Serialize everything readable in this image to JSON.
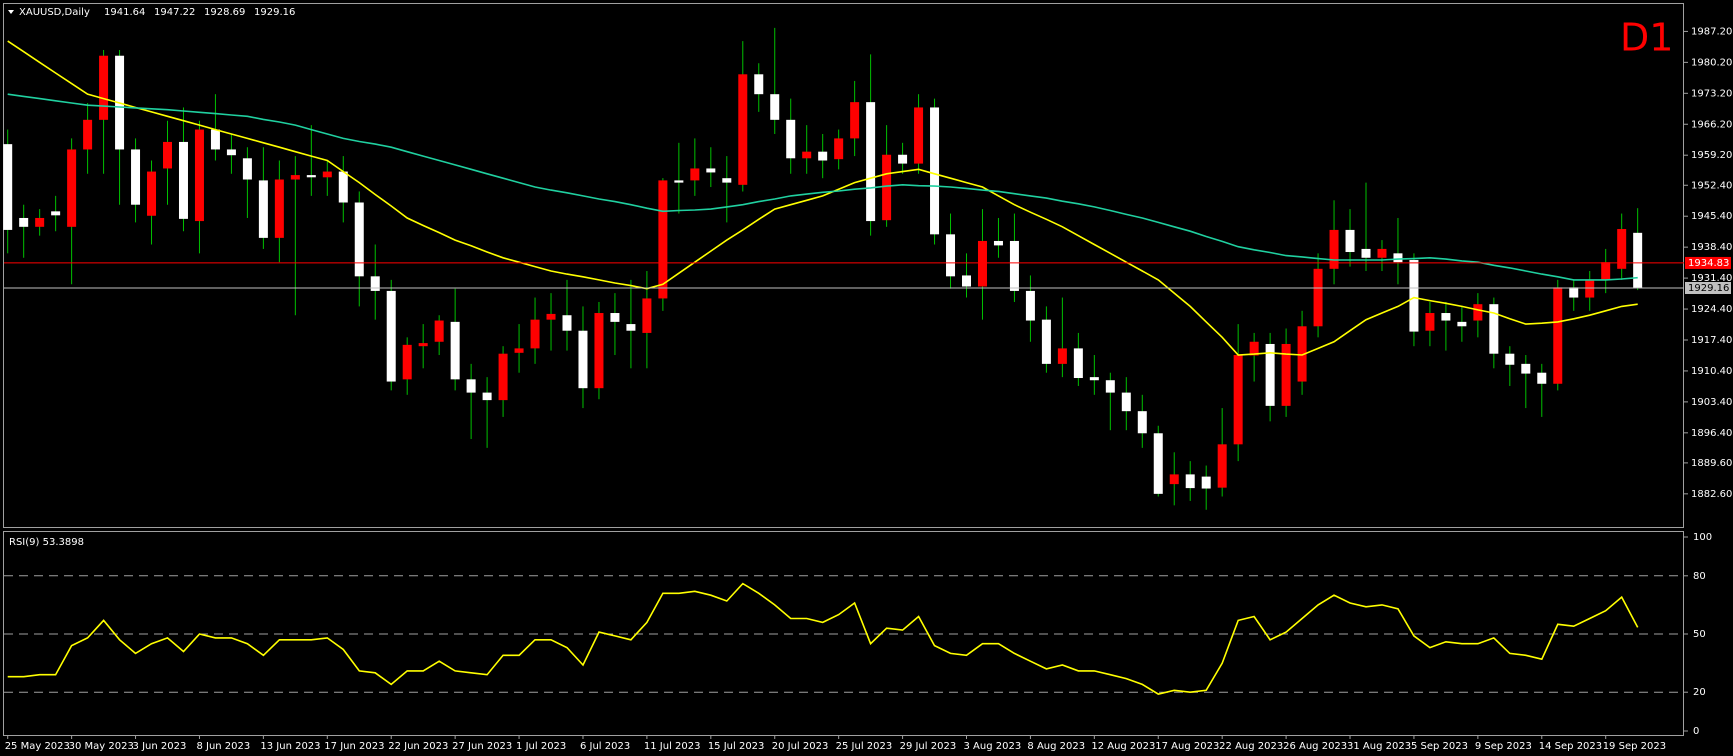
{
  "chart_data": [
    {
      "type": "candlestick",
      "title": "XAUUSD,Daily",
      "timeframe": "D1",
      "categories": [
        "25 May 2023",
        null,
        null,
        null,
        "30 May 2023",
        null,
        null,
        null,
        "3 Jun 2023",
        null,
        null,
        null,
        "8 Jun 2023",
        null,
        null,
        null,
        "13 Jun 2023",
        null,
        null,
        null,
        "17 Jun 2023",
        null,
        null,
        null,
        "22 Jun 2023",
        null,
        null,
        null,
        "27 Jun 2023",
        null,
        null,
        null,
        "1 Jul 2023",
        null,
        null,
        null,
        "6 Jul 2023",
        null,
        null,
        null,
        "11 Jul 2023",
        null,
        null,
        null,
        "15 Jul 2023",
        null,
        null,
        null,
        "20 Jul 2023",
        null,
        null,
        null,
        "25 Jul 2023",
        null,
        null,
        null,
        "29 Jul 2023",
        null,
        null,
        null,
        "3 Aug 2023",
        null,
        null,
        null,
        "8 Aug 2023",
        null,
        null,
        null,
        "12 Aug 2023",
        null,
        null,
        null,
        "17 Aug 2023",
        null,
        null,
        null,
        "22 Aug 2023",
        null,
        null,
        null,
        "26 Aug 2023",
        null,
        null,
        null,
        "31 Aug 2023",
        null,
        null,
        null,
        "5 Sep 2023",
        null,
        null,
        null,
        "9 Sep 2023",
        null,
        null,
        null,
        "14 Sep 2023",
        null,
        null,
        null,
        "19 Sep 2023",
        null,
        null
      ],
      "open": [
        1961.7,
        1945,
        1943,
        1946.5,
        1943,
        1960.5,
        1967.2,
        1981.7,
        1960.5,
        1945.5,
        1956.2,
        1962.2,
        1944.3,
        1965,
        1960.5,
        1958.5,
        1953.5,
        1940.5,
        1953.7,
        1954.7,
        1954.2,
        1955.5,
        1948.5,
        1931.8,
        1928.5,
        1908.5,
        1916,
        1917,
        1921.5,
        1908.5,
        1905.5,
        1903.8,
        1914.5,
        1915.5,
        1922,
        1923,
        1919.5,
        1906.5,
        1923.5,
        1921,
        1919,
        1926.8,
        1953.5,
        1953.5,
        1956.2,
        1954,
        1952.5,
        1977.5,
        1973,
        1967.2,
        1958.5,
        1960,
        1958.3,
        1963,
        1971.2,
        1944.5,
        1959.3,
        1957.3,
        1970,
        1941.3,
        1932,
        1929.5,
        1939.8,
        1939.8,
        1928.5,
        1922,
        1912,
        1915.5,
        1909,
        1908.3,
        1905.5,
        1901.3,
        1896.3,
        1884.8,
        1887,
        1886.5,
        1884,
        1893.8,
        1913.9,
        1916.5,
        1902.5,
        1908,
        1920.5,
        1933.5,
        1942.3,
        1938,
        1936,
        1937,
        1935.5,
        1919.5,
        1923.5,
        1921.5,
        1921.8,
        1925.5,
        1914.3,
        1912,
        1910,
        1907.5,
        1929.3,
        1927,
        1931,
        1933.5,
        1941.64
      ],
      "high": [
        1965,
        1948,
        1947,
        1950,
        1963,
        1971,
        1983,
        1983,
        1963,
        1958,
        1967,
        1970,
        1967,
        1973,
        1964,
        1961,
        1961,
        1958,
        1959,
        1966,
        1958,
        1959,
        1951,
        1939,
        1931,
        1918,
        1921,
        1923,
        1929,
        1912,
        1909,
        1916,
        1921,
        1927,
        1928,
        1931,
        1925,
        1926,
        1928,
        1931,
        1933,
        1954,
        1962,
        1963,
        1961,
        1959,
        1985,
        1980,
        1988,
        1972,
        1966,
        1964,
        1965,
        1976,
        1982,
        1966,
        1962,
        1973,
        1972,
        1946,
        1937,
        1947,
        1945,
        1946,
        1932,
        1925,
        1927,
        1919,
        1914,
        1910,
        1909,
        1905,
        1898,
        1892,
        1890,
        1889,
        1902,
        1921,
        1919,
        1919,
        1920,
        1924,
        1937,
        1949,
        1947,
        1953,
        1940,
        1945,
        1937,
        1926,
        1926,
        1925,
        1928,
        1927,
        1916,
        1914,
        1912,
        1931,
        1931,
        1933,
        1938,
        1946,
        1947.22
      ],
      "low": [
        1937,
        1936,
        1941,
        1942,
        1930,
        1955,
        1955,
        1948,
        1944,
        1939,
        1948,
        1942,
        1937,
        1958,
        1955,
        1945,
        1938,
        1935,
        1923,
        1950,
        1950,
        1944,
        1925,
        1922,
        1906,
        1905,
        1911,
        1914,
        1906,
        1895,
        1893,
        1900,
        1910,
        1912,
        1915,
        1915,
        1902,
        1904,
        1914,
        1911,
        1911,
        1924,
        1946,
        1950,
        1952,
        1944,
        1951,
        1969,
        1964,
        1955,
        1955,
        1954,
        1956,
        1959,
        1941,
        1943,
        1955,
        1955,
        1939,
        1929,
        1927,
        1922,
        1936,
        1926,
        1917,
        1910,
        1909,
        1907,
        1905,
        1897,
        1897,
        1893,
        1882,
        1880,
        1881,
        1879,
        1882,
        1890,
        1908,
        1899,
        1900,
        1905,
        1918,
        1930,
        1934,
        1933,
        1933,
        1930,
        1916,
        1916,
        1915,
        1917,
        1918,
        1911,
        1907,
        1902,
        1900,
        1906,
        1924,
        1924,
        1928,
        1931,
        1928.69
      ],
      "close": [
        1942.3,
        1943,
        1945,
        1945.6,
        1960.5,
        1967.2,
        1981.7,
        1960.5,
        1948,
        1955.5,
        1962.2,
        1944.8,
        1965,
        1960.5,
        1959.2,
        1953.7,
        1940.5,
        1953.7,
        1954.7,
        1954.2,
        1955.5,
        1948.5,
        1931.8,
        1928.5,
        1908,
        1916.3,
        1916.7,
        1921.8,
        1908.5,
        1905.5,
        1903.8,
        1914.3,
        1915.5,
        1922,
        1923.3,
        1919.5,
        1906.5,
        1923.5,
        1921.5,
        1919.5,
        1926.8,
        1953.5,
        1953,
        1956.2,
        1955.3,
        1953,
        1977.5,
        1973,
        1967.2,
        1958.5,
        1960,
        1958,
        1963,
        1971.2,
        1944.3,
        1959.3,
        1957.3,
        1970,
        1941.3,
        1931.8,
        1929.5,
        1939.8,
        1938.8,
        1928.5,
        1921.8,
        1912,
        1915.5,
        1908.8,
        1908.3,
        1905.5,
        1901.3,
        1896.3,
        1882.6,
        1887,
        1883.9,
        1883.8,
        1893.8,
        1914,
        1917,
        1902.5,
        1916.5,
        1920.5,
        1933.5,
        1942.3,
        1937.3,
        1936,
        1938,
        1935,
        1919.3,
        1923.5,
        1921.8,
        1920.5,
        1925.5,
        1914.3,
        1911.8,
        1909.8,
        1907.5,
        1929.3,
        1927,
        1931,
        1935,
        1942.5,
        1929.16
      ],
      "up_color": "#ff0000",
      "down_color": "#ffffff",
      "wick_color": "#00c000",
      "overlays": [
        {
          "color": "#ffff00",
          "values": [
            1985,
            1982.6,
            1980.2,
            1977.8,
            1975.4,
            1973,
            1972,
            1971,
            1970,
            1969,
            1968,
            1967,
            1966,
            1965,
            1964,
            1963,
            1962,
            1961,
            1960,
            1959,
            1958,
            1955.5,
            1953,
            1950.3,
            1947.7,
            1945,
            1943.3,
            1941.7,
            1940,
            1938.7,
            1937.3,
            1936,
            1935,
            1934,
            1933,
            1932.3,
            1931.7,
            1931,
            1930.3,
            1929.7,
            1929,
            1930,
            1932.5,
            1935,
            1937.5,
            1940,
            1942.3,
            1944.7,
            1947,
            1948,
            1949,
            1950,
            1951.5,
            1953,
            1954,
            1955,
            1955.5,
            1956,
            1955,
            1954,
            1953,
            1952,
            1950,
            1948,
            1946.3,
            1944.7,
            1943,
            1941,
            1939,
            1937,
            1935,
            1933,
            1931,
            1928,
            1925,
            1921.5,
            1918,
            1914,
            1914.2,
            1914.5,
            1914.2,
            1914,
            1915.5,
            1917,
            1919.5,
            1922,
            1923.5,
            1925,
            1927,
            1926.3,
            1925.7,
            1925,
            1924.2,
            1923.5,
            1922.2,
            1921,
            1921.2,
            1921.5,
            1922.2,
            1923,
            1924,
            1925,
            1925.5
          ]
        },
        {
          "color": "#20d0a0",
          "values": [
            1973,
            1972.5,
            1972,
            1971.5,
            1971,
            1970.5,
            1970.3,
            1970.1,
            1969.9,
            1969.7,
            1969.5,
            1969.2,
            1968.9,
            1968.6,
            1968.3,
            1968,
            1967.3,
            1966.7,
            1966,
            1965,
            1964,
            1963,
            1962.3,
            1961.7,
            1961,
            1960,
            1959,
            1958,
            1957,
            1956,
            1955,
            1954,
            1953,
            1952,
            1951.3,
            1950.7,
            1950,
            1949.3,
            1948.7,
            1948,
            1947.2,
            1946.5,
            1946.7,
            1946.8,
            1947,
            1947.5,
            1948,
            1948.7,
            1949.3,
            1950,
            1950.4,
            1950.8,
            1951.1,
            1951.5,
            1951.8,
            1952.2,
            1952.5,
            1952.3,
            1952.2,
            1952,
            1951.7,
            1951.3,
            1951,
            1950.5,
            1950,
            1949.5,
            1948.8,
            1948.2,
            1947.5,
            1946.7,
            1945.8,
            1945,
            1944,
            1943,
            1942,
            1940.8,
            1939.7,
            1938.5,
            1937.8,
            1937.2,
            1936.5,
            1936.2,
            1935.8,
            1935.5,
            1935.5,
            1935.5,
            1935.5,
            1935.7,
            1935.8,
            1936,
            1935.7,
            1935.3,
            1935,
            1934.3,
            1933.7,
            1933,
            1932.3,
            1931.7,
            1931,
            1931,
            1931,
            1931.2,
            1931.5
          ]
        }
      ],
      "price_lines": [
        {
          "value": 1934.83,
          "color": "#ff0000"
        },
        {
          "value": 1929.16,
          "color": "#c0c0c0"
        }
      ],
      "ylim": [
        1875.1,
        1993.4
      ],
      "yticks": [
        {
          "value": 1987.2,
          "label": "1987.20"
        },
        {
          "value": 1980.2,
          "label": "1980.20"
        },
        {
          "value": 1973.2,
          "label": "1973.20"
        },
        {
          "value": 1966.2,
          "label": "1966.20"
        },
        {
          "value": 1959.2,
          "label": "1959.20"
        },
        {
          "value": 1952.4,
          "label": "1952.40"
        },
        {
          "value": 1945.4,
          "label": "1945.40"
        },
        {
          "value": 1938.4,
          "label": "1938.40"
        },
        {
          "value": 1931.4,
          "label": "1931.40"
        },
        {
          "value": 1924.4,
          "label": "1924.40"
        },
        {
          "value": 1917.4,
          "label": "1917.40"
        },
        {
          "value": 1910.4,
          "label": "1910.40"
        },
        {
          "value": 1903.4,
          "label": "1903.40"
        },
        {
          "value": 1896.4,
          "label": "1896.40"
        },
        {
          "value": 1889.6,
          "label": "1889.60"
        },
        {
          "value": 1882.6,
          "label": "1882.60"
        }
      ]
    },
    {
      "type": "line",
      "title": "RSI(9) 53.3898",
      "color": "#ffff00",
      "values": [
        28,
        28,
        29,
        29,
        44,
        48,
        57,
        47,
        40,
        45,
        48,
        41,
        50,
        48,
        48,
        45,
        39,
        47,
        47,
        47,
        48,
        42,
        31,
        30,
        24,
        31,
        31,
        36,
        31,
        30,
        29,
        39,
        39,
        47,
        47,
        43,
        34,
        51,
        49,
        47,
        56,
        71,
        71,
        72,
        70,
        67,
        76,
        71,
        65,
        58,
        58,
        56,
        60,
        66,
        45,
        53,
        52,
        59,
        44,
        40,
        39,
        45,
        45,
        40,
        36,
        32,
        34,
        31,
        31,
        29,
        27,
        24,
        19,
        21,
        20,
        21,
        35,
        57,
        59,
        47,
        51,
        58,
        65,
        70,
        66,
        64,
        65,
        63,
        49,
        43,
        46,
        45,
        45,
        48,
        40,
        39,
        37,
        55,
        54,
        58,
        62,
        69,
        53.3898
      ],
      "ylim": [
        0,
        100
      ],
      "yticks": [
        0,
        20,
        50,
        80,
        100
      ]
    }
  ]
}
